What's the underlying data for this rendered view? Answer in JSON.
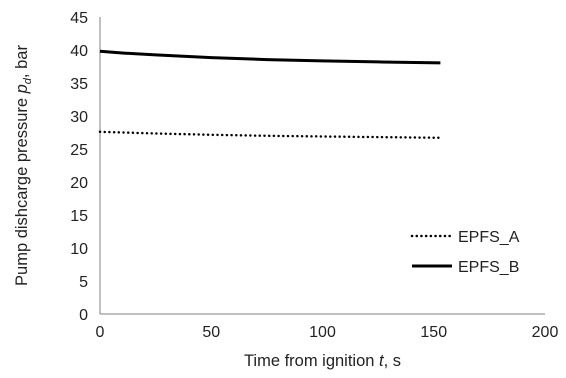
{
  "chart_data": {
    "type": "line",
    "xlabel": {
      "prefix": "Time from ignition ",
      "var": "t",
      "suffix": ", s"
    },
    "ylabel": {
      "prefix": "Pump dishcarge pressure ",
      "var": "p",
      "sub": "d",
      "suffix": ", bar"
    },
    "xlim": [
      0,
      200
    ],
    "ylim": [
      0,
      45
    ],
    "xticks": [
      0,
      50,
      100,
      150,
      200
    ],
    "yticks": [
      0,
      5,
      10,
      15,
      20,
      25,
      30,
      35,
      40,
      45
    ],
    "grid": false,
    "legend_position": "bottom-right",
    "series": [
      {
        "name": "EPFS_A",
        "style": "dotted",
        "color": "#000000",
        "x": [
          0,
          25,
          50,
          75,
          100,
          125,
          153
        ],
        "y": [
          27.6,
          27.35,
          27.15,
          27.0,
          26.9,
          26.8,
          26.7
        ]
      },
      {
        "name": "EPFS_B",
        "style": "solid",
        "color": "#000000",
        "x": [
          0,
          10,
          25,
          50,
          75,
          100,
          125,
          153
        ],
        "y": [
          39.8,
          39.55,
          39.25,
          38.85,
          38.55,
          38.35,
          38.2,
          38.05
        ]
      }
    ]
  }
}
